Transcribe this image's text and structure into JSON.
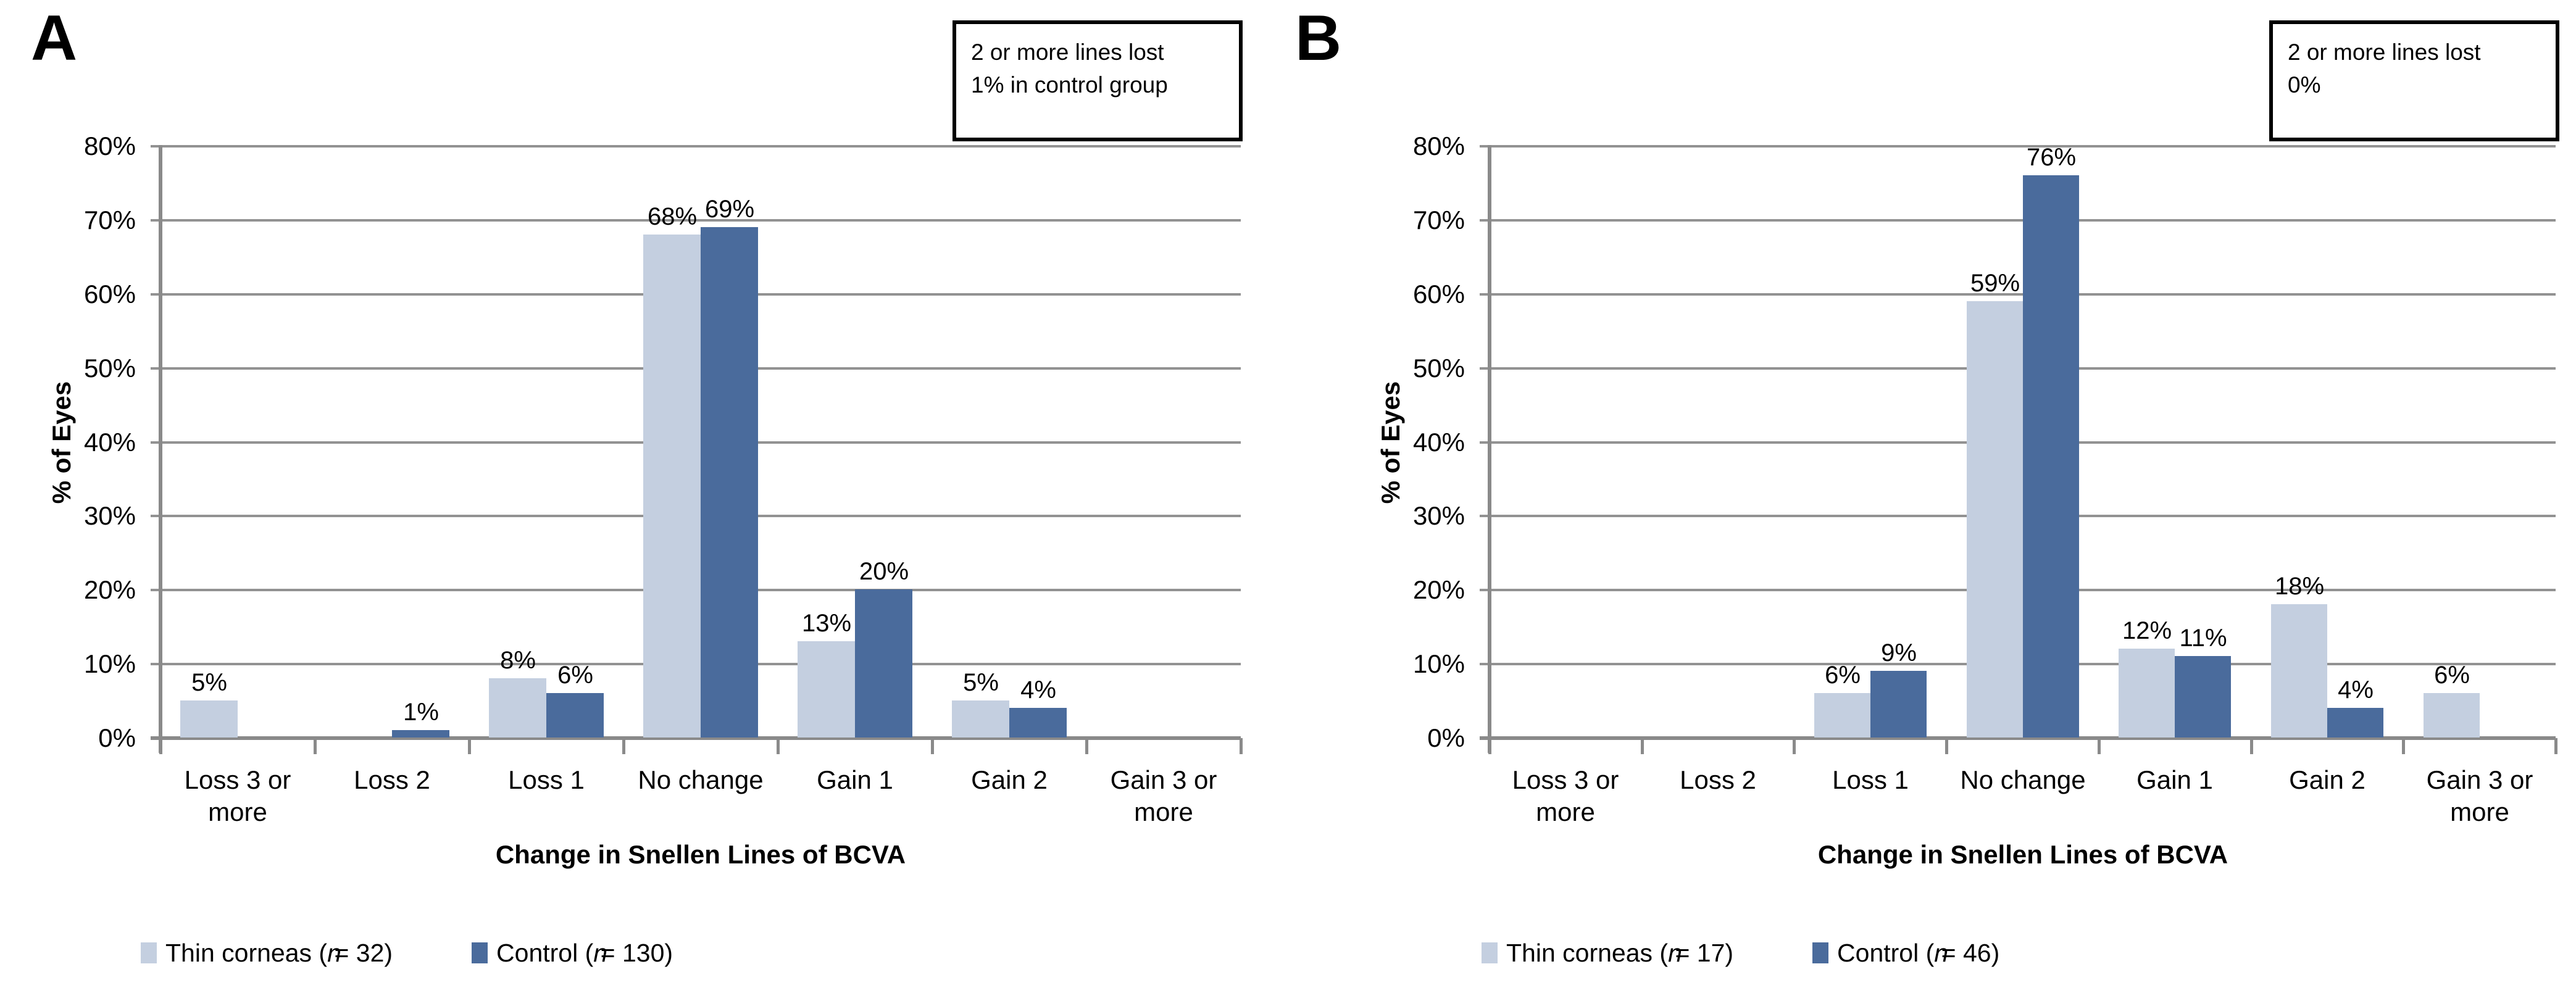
{
  "panels": [
    {
      "panel_label": "A",
      "note_box": {
        "line1": "2 or more lines lost",
        "line2": "1% in control group"
      }
    },
    {
      "panel_label": "B",
      "note_box": {
        "line1": "2 or more lines lost",
        "line2": "0%"
      }
    }
  ],
  "chart_data": [
    {
      "type": "bar",
      "title": "",
      "xlabel": "Change in Snellen Lines of BCVA",
      "ylabel": "% of Eyes",
      "ylim": [
        0,
        80
      ],
      "ytick_labels": [
        "0%",
        "10%",
        "20%",
        "30%",
        "40%",
        "50%",
        "60%",
        "70%",
        "80%"
      ],
      "grid": true,
      "legend_position": "bottom",
      "unit": "%",
      "categories": [
        "Loss 3 or more",
        "Loss 2",
        "Loss 1",
        "No change",
        "Gain 1",
        "Gain 2",
        "Gain 3 or more"
      ],
      "series": [
        {
          "name": "Thin corneas (n = 32)",
          "color": "#c4cfe0",
          "values": [
            5,
            0,
            8,
            68,
            13,
            5,
            0
          ]
        },
        {
          "name": "Control (n = 130)",
          "color": "#4a6b9c",
          "values": [
            0,
            1,
            6,
            69,
            20,
            4,
            0
          ]
        }
      ]
    },
    {
      "type": "bar",
      "title": "",
      "xlabel": "Change in Snellen Lines of BCVA",
      "ylabel": "% of Eyes",
      "ylim": [
        0,
        80
      ],
      "ytick_labels": [
        "0%",
        "10%",
        "20%",
        "30%",
        "40%",
        "50%",
        "60%",
        "70%",
        "80%"
      ],
      "grid": true,
      "legend_position": "bottom",
      "unit": "%",
      "categories": [
        "Loss 3 or more",
        "Loss 2",
        "Loss 1",
        "No change",
        "Gain 1",
        "Gain 2",
        "Gain 3 or more"
      ],
      "series": [
        {
          "name": "Thin corneas (n = 17)",
          "color": "#c4cfe0",
          "values": [
            0,
            0,
            6,
            59,
            12,
            18,
            6
          ]
        },
        {
          "name": "Control (n = 46)",
          "color": "#4a6b9c",
          "values": [
            0,
            0,
            9,
            76,
            11,
            4,
            0
          ]
        }
      ]
    }
  ],
  "colors": {
    "light_series": "#c4cfe0",
    "dark_series": "#4a6b9c",
    "gridline": "#929292",
    "axis": "#8a8a8a",
    "note_border": "#000000",
    "text": "#000000"
  }
}
